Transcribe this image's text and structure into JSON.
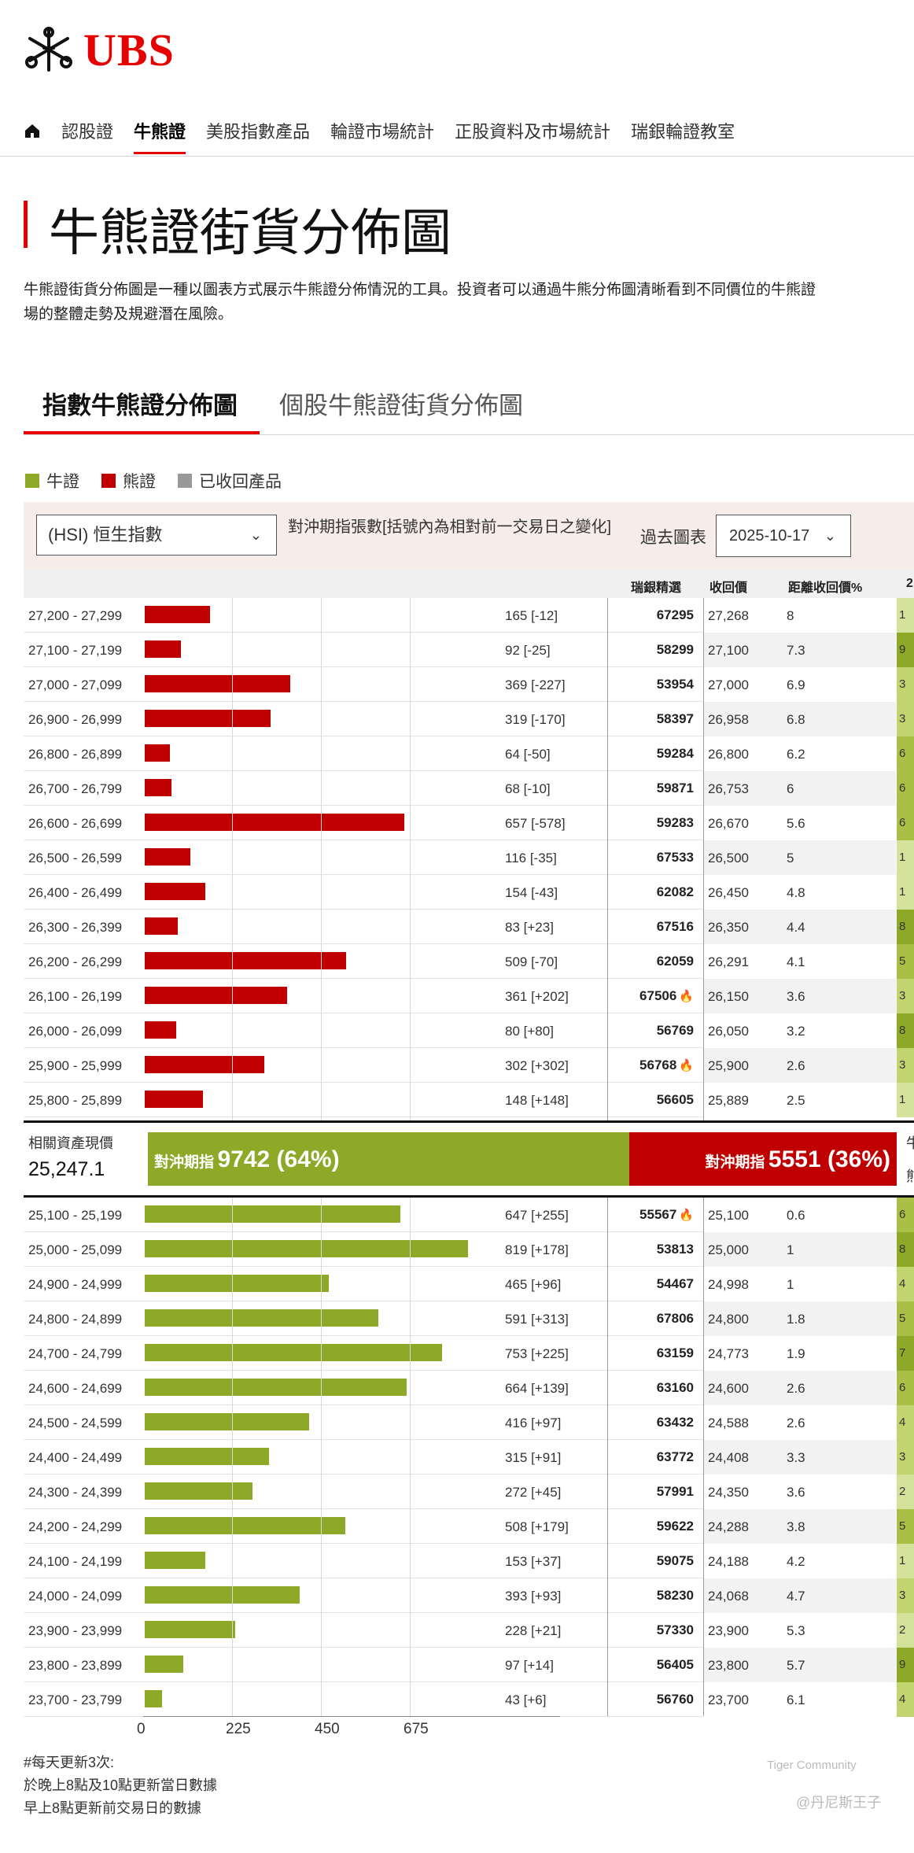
{
  "logo": {
    "text": "UBS"
  },
  "nav": {
    "items": [
      "認股證",
      "牛熊證",
      "美股指數產品",
      "輪證市場統計",
      "正股資料及市場統計",
      "瑞銀輪證教室"
    ],
    "active": 1
  },
  "page": {
    "title": "牛熊證街貨分佈圖",
    "desc_line1": "牛熊證街貨分佈圖是一種以圖表方式展示牛熊證分佈情況的工具。投資者可以通過牛熊分佈圖清晰看到不同價位的牛熊證",
    "desc_line2": "場的整體走勢及規避潛在風險。"
  },
  "tabs": [
    "指數牛熊證分佈圖",
    "個股牛熊證街貨分佈圖"
  ],
  "legend": [
    {
      "label": "牛證",
      "color": "#8ea827"
    },
    {
      "label": "熊證",
      "color": "#c00000"
    },
    {
      "label": "已收回產品",
      "color": "#999999"
    }
  ],
  "controls": {
    "index_value": "(HSI) 恒生指數",
    "label": "對沖期指張數[括號內為相對前一交易日之變化]",
    "past_label": "過去圖表",
    "date_value": "2025-10-17"
  },
  "table_header": {
    "pick": "瑞銀精選",
    "call": "收回價",
    "dist": "距離收回價%",
    "extra": "2"
  },
  "middle": {
    "label": "相關資產現價",
    "price": "25,247.1",
    "bull_label": "對沖期指",
    "bull_value": "9742 (64%)",
    "bear_label": "對沖期指",
    "bear_value": "5551 (36%)",
    "right_top": "牛",
    "right_bottom": "熊"
  },
  "chart_data": {
    "type": "bar",
    "orientation": "horizontal",
    "xticks": [
      0,
      225,
      450,
      675
    ],
    "xlim": [
      0,
      900
    ],
    "series": [
      {
        "name": "熊證",
        "color": "#c00000",
        "rows": [
          {
            "range": "27,200 - 27,299",
            "value": 165,
            "change": "[-12]",
            "code": "67295",
            "hot": false,
            "call": "27,268",
            "dist": "8",
            "right": "1"
          },
          {
            "range": "27,100 - 27,199",
            "value": 92,
            "change": "[-25]",
            "code": "58299",
            "hot": false,
            "call": "27,100",
            "dist": "7.3",
            "right": "9"
          },
          {
            "range": "27,000 - 27,099",
            "value": 369,
            "change": "[-227]",
            "code": "53954",
            "hot": false,
            "call": "27,000",
            "dist": "6.9",
            "right": "3"
          },
          {
            "range": "26,900 - 26,999",
            "value": 319,
            "change": "[-170]",
            "code": "58397",
            "hot": false,
            "call": "26,958",
            "dist": "6.8",
            "right": "3"
          },
          {
            "range": "26,800 - 26,899",
            "value": 64,
            "change": "[-50]",
            "code": "59284",
            "hot": false,
            "call": "26,800",
            "dist": "6.2",
            "right": "6"
          },
          {
            "range": "26,700 - 26,799",
            "value": 68,
            "change": "[-10]",
            "code": "59871",
            "hot": false,
            "call": "26,753",
            "dist": "6",
            "right": "6"
          },
          {
            "range": "26,600 - 26,699",
            "value": 657,
            "change": "[-578]",
            "code": "59283",
            "hot": false,
            "call": "26,670",
            "dist": "5.6",
            "right": "6"
          },
          {
            "range": "26,500 - 26,599",
            "value": 116,
            "change": "[-35]",
            "code": "67533",
            "hot": false,
            "call": "26,500",
            "dist": "5",
            "right": "1"
          },
          {
            "range": "26,400 - 26,499",
            "value": 154,
            "change": "[-43]",
            "code": "62082",
            "hot": false,
            "call": "26,450",
            "dist": "4.8",
            "right": "1"
          },
          {
            "range": "26,300 - 26,399",
            "value": 83,
            "change": "[+23]",
            "code": "67516",
            "hot": false,
            "call": "26,350",
            "dist": "4.4",
            "right": "8"
          },
          {
            "range": "26,200 - 26,299",
            "value": 509,
            "change": "[-70]",
            "code": "62059",
            "hot": false,
            "call": "26,291",
            "dist": "4.1",
            "right": "5"
          },
          {
            "range": "26,100 - 26,199",
            "value": 361,
            "change": "[+202]",
            "code": "67506",
            "hot": true,
            "call": "26,150",
            "dist": "3.6",
            "right": "3"
          },
          {
            "range": "26,000 - 26,099",
            "value": 80,
            "change": "[+80]",
            "code": "56769",
            "hot": false,
            "call": "26,050",
            "dist": "3.2",
            "right": "8"
          },
          {
            "range": "25,900 - 25,999",
            "value": 302,
            "change": "[+302]",
            "code": "56768",
            "hot": true,
            "call": "25,900",
            "dist": "2.6",
            "right": "3"
          },
          {
            "range": "25,800 - 25,899",
            "value": 148,
            "change": "[+148]",
            "code": "56605",
            "hot": false,
            "call": "25,889",
            "dist": "2.5",
            "right": "1"
          }
        ]
      },
      {
        "name": "牛證",
        "color": "#8ea827",
        "rows": [
          {
            "range": "25,100 - 25,199",
            "value": 647,
            "change": "[+255]",
            "code": "55567",
            "hot": true,
            "call": "25,100",
            "dist": "0.6",
            "right": "6"
          },
          {
            "range": "25,000 - 25,099",
            "value": 819,
            "change": "[+178]",
            "code": "53813",
            "hot": false,
            "call": "25,000",
            "dist": "1",
            "right": "8"
          },
          {
            "range": "24,900 - 24,999",
            "value": 465,
            "change": "[+96]",
            "code": "54467",
            "hot": false,
            "call": "24,998",
            "dist": "1",
            "right": "4"
          },
          {
            "range": "24,800 - 24,899",
            "value": 591,
            "change": "[+313]",
            "code": "67806",
            "hot": false,
            "call": "24,800",
            "dist": "1.8",
            "right": "5"
          },
          {
            "range": "24,700 - 24,799",
            "value": 753,
            "change": "[+225]",
            "code": "63159",
            "hot": false,
            "call": "24,773",
            "dist": "1.9",
            "right": "7"
          },
          {
            "range": "24,600 - 24,699",
            "value": 664,
            "change": "[+139]",
            "code": "63160",
            "hot": false,
            "call": "24,600",
            "dist": "2.6",
            "right": "6"
          },
          {
            "range": "24,500 - 24,599",
            "value": 416,
            "change": "[+97]",
            "code": "63432",
            "hot": false,
            "call": "24,588",
            "dist": "2.6",
            "right": "4"
          },
          {
            "range": "24,400 - 24,499",
            "value": 315,
            "change": "[+91]",
            "code": "63772",
            "hot": false,
            "call": "24,408",
            "dist": "3.3",
            "right": "3"
          },
          {
            "range": "24,300 - 24,399",
            "value": 272,
            "change": "[+45]",
            "code": "57991",
            "hot": false,
            "call": "24,350",
            "dist": "3.6",
            "right": "2"
          },
          {
            "range": "24,200 - 24,299",
            "value": 508,
            "change": "[+179]",
            "code": "59622",
            "hot": false,
            "call": "24,288",
            "dist": "3.8",
            "right": "5"
          },
          {
            "range": "24,100 - 24,199",
            "value": 153,
            "change": "[+37]",
            "code": "59075",
            "hot": false,
            "call": "24,188",
            "dist": "4.2",
            "right": "1"
          },
          {
            "range": "24,000 - 24,099",
            "value": 393,
            "change": "[+93]",
            "code": "58230",
            "hot": false,
            "call": "24,068",
            "dist": "4.7",
            "right": "3"
          },
          {
            "range": "23,900 - 23,999",
            "value": 228,
            "change": "[+21]",
            "code": "57330",
            "hot": false,
            "call": "23,900",
            "dist": "5.3",
            "right": "2"
          },
          {
            "range": "23,800 - 23,899",
            "value": 97,
            "change": "[+14]",
            "code": "56405",
            "hot": false,
            "call": "23,800",
            "dist": "5.7",
            "right": "9"
          },
          {
            "range": "23,700 - 23,799",
            "value": 43,
            "change": "[+6]",
            "code": "56760",
            "hot": false,
            "call": "23,700",
            "dist": "6.1",
            "right": "4"
          }
        ]
      }
    ]
  },
  "footer": {
    "note1": "#每天更新3次:",
    "note2": "於晚上8點及10點更新當日數據",
    "note3": "早上8點更新前交易日的數據",
    "watermark1": "Tiger Community",
    "watermark2": "@丹尼斯王子"
  }
}
